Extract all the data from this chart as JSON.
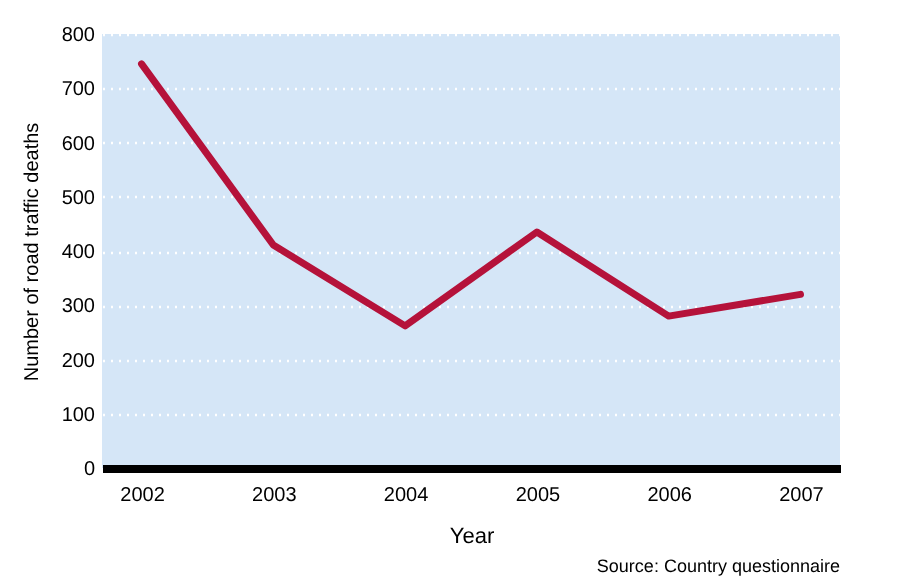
{
  "chart_data": {
    "type": "line",
    "xlabel": "Year",
    "ylabel": "Number of road traffic deaths",
    "categories": [
      "2002",
      "2003",
      "2004",
      "2005",
      "2006",
      "2007"
    ],
    "series": [
      {
        "color": "#b5123a",
        "values": [
          745,
          411,
          262,
          435,
          280,
          320
        ]
      }
    ],
    "ylim": [
      0,
      800
    ],
    "yticks": [
      0,
      100,
      200,
      300,
      400,
      500,
      600,
      700,
      800
    ],
    "grid": "y",
    "annotations": [
      "Source: Country questionnaire"
    ]
  }
}
